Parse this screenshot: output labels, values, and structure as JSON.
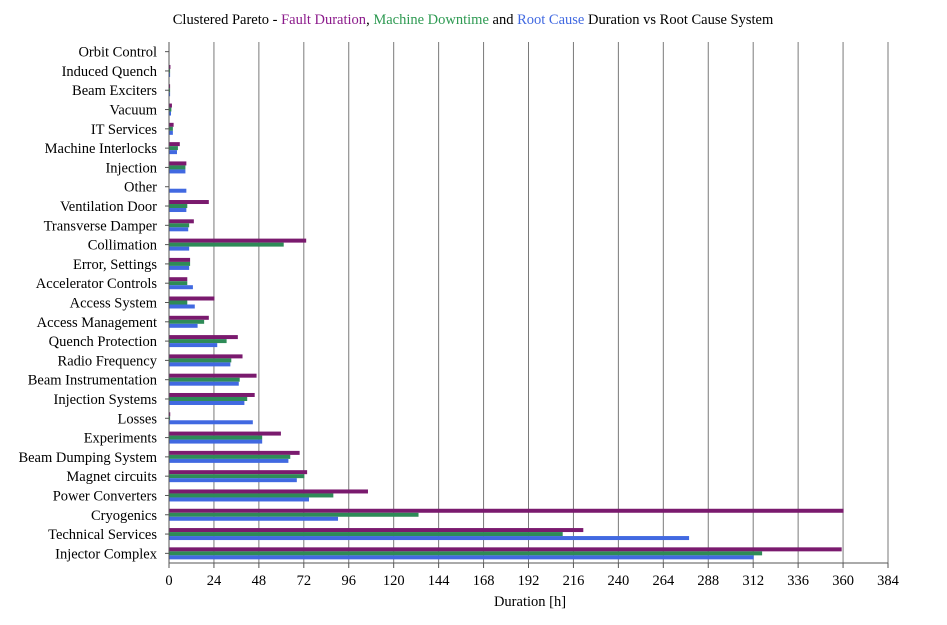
{
  "chart_data": {
    "type": "bar",
    "orientation": "horizontal",
    "title": {
      "parts": [
        {
          "text": "Clustered Pareto - ",
          "color": "#000000"
        },
        {
          "text": "Fault Duration",
          "color": "#8b1a8b"
        },
        {
          "text": ", ",
          "color": "#000000"
        },
        {
          "text": "Machine Downtime",
          "color": "#2e9a52"
        },
        {
          "text": " and ",
          "color": "#000000"
        },
        {
          "text": "Root Cause",
          "color": "#4169e1"
        },
        {
          "text": " Duration vs Root Cause System",
          "color": "#000000"
        }
      ]
    },
    "xlabel": "Duration [h]",
    "ylabel": "",
    "xlim": [
      0,
      384
    ],
    "xticks": [
      0,
      24,
      48,
      72,
      96,
      120,
      144,
      168,
      192,
      216,
      240,
      264,
      288,
      312,
      336,
      360,
      384
    ],
    "grid": "vertical",
    "legend": "none",
    "categories": [
      "Orbit Control",
      "Induced Quench",
      "Beam Exciters",
      "Vacuum",
      "IT Services",
      "Machine Interlocks",
      "Injection",
      "Other",
      "Ventilation Door",
      "Transverse Damper",
      "Collimation",
      "Error, Settings",
      "Accelerator Controls",
      "Access System",
      "Access Management",
      "Quench Protection",
      "Radio Frequency",
      "Beam Instrumentation",
      "Injection Systems",
      "Losses",
      "Experiments",
      "Beam Dumping System",
      "Magnet circuits",
      "Power Converters",
      "Cryogenics",
      "Technical Services",
      "Injector Complex"
    ],
    "series": [
      {
        "color": "#7a1a6e",
        "values": [
          0,
          0.5,
          0.3,
          1.3,
          2.2,
          5.5,
          9,
          0,
          21,
          13,
          73,
          11,
          9.5,
          24,
          21,
          36.5,
          39,
          46.5,
          45.5,
          0.4,
          59.5,
          69.5,
          73.5,
          106,
          360,
          221,
          359
        ]
      },
      {
        "color": "#2e8b57",
        "values": [
          0,
          0.3,
          0.3,
          1.0,
          1.8,
          4.5,
          8.5,
          0,
          9.5,
          10.5,
          61,
          11,
          9.5,
          9.5,
          18.5,
          30.5,
          33,
          37.5,
          41.5,
          0.3,
          49.5,
          64.5,
          72,
          87.5,
          133,
          210,
          316.5
        ]
      },
      {
        "color": "#4169e1",
        "values": [
          0,
          0.2,
          0.3,
          0.8,
          1.8,
          4,
          8.5,
          9,
          9,
          10,
          10.5,
          10.5,
          12.5,
          13.5,
          15,
          25.5,
          32.5,
          37,
          40,
          44.5,
          49.5,
          63.5,
          68,
          74.5,
          90,
          277.5,
          312
        ]
      }
    ]
  }
}
